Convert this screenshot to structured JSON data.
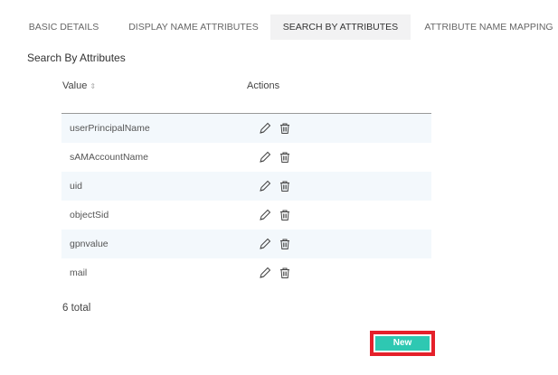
{
  "tabs": [
    {
      "label": "BASIC DETAILS"
    },
    {
      "label": "DISPLAY NAME ATTRIBUTES"
    },
    {
      "label": "SEARCH BY ATTRIBUTES",
      "active": true
    },
    {
      "label": "ATTRIBUTE NAME MAPPING"
    }
  ],
  "section_title": "Search By Attributes",
  "table": {
    "headers": {
      "value": "Value",
      "actions": "Actions"
    },
    "sort_icon": "sort-icon",
    "rows": [
      {
        "value": "userPrincipalName"
      },
      {
        "value": "sAMAccountName"
      },
      {
        "value": "uid"
      },
      {
        "value": "objectSid"
      },
      {
        "value": "gpnvalue"
      },
      {
        "value": "mail"
      }
    ]
  },
  "total": "6 total",
  "new_button": "New",
  "colors": {
    "accent": "#2ec8b2",
    "highlight": "#e5202a"
  }
}
